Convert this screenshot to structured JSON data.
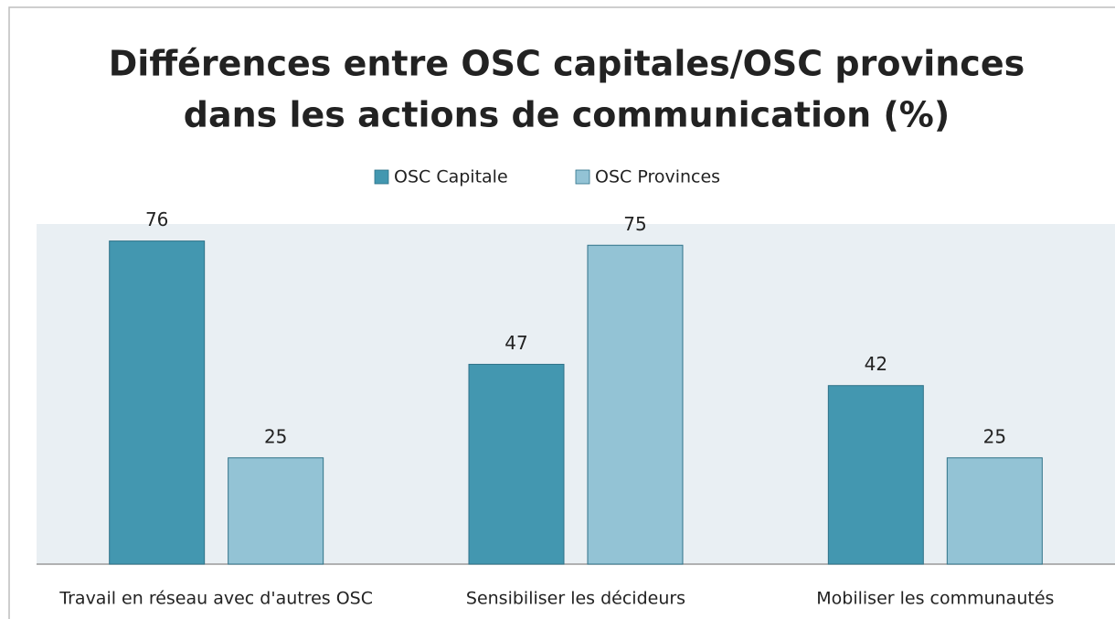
{
  "chart_data": {
    "type": "bar",
    "title": [
      "Différences entre OSC capitales/OSC provinces",
      "dans les actions de communication (%)"
    ],
    "categories": [
      "Travail en réseau avec d'autres OSC",
      "Sensibiliser les décideurs",
      "Mobiliser les communautés"
    ],
    "series": [
      {
        "name": "OSC Capitale",
        "color": "#4397b0",
        "values": [
          76,
          47,
          42
        ]
      },
      {
        "name": "OSC Provinces",
        "color": "#93c3d5",
        "values": [
          25,
          75,
          25
        ]
      }
    ],
    "ylim": [
      0,
      80
    ],
    "legend": "top"
  }
}
